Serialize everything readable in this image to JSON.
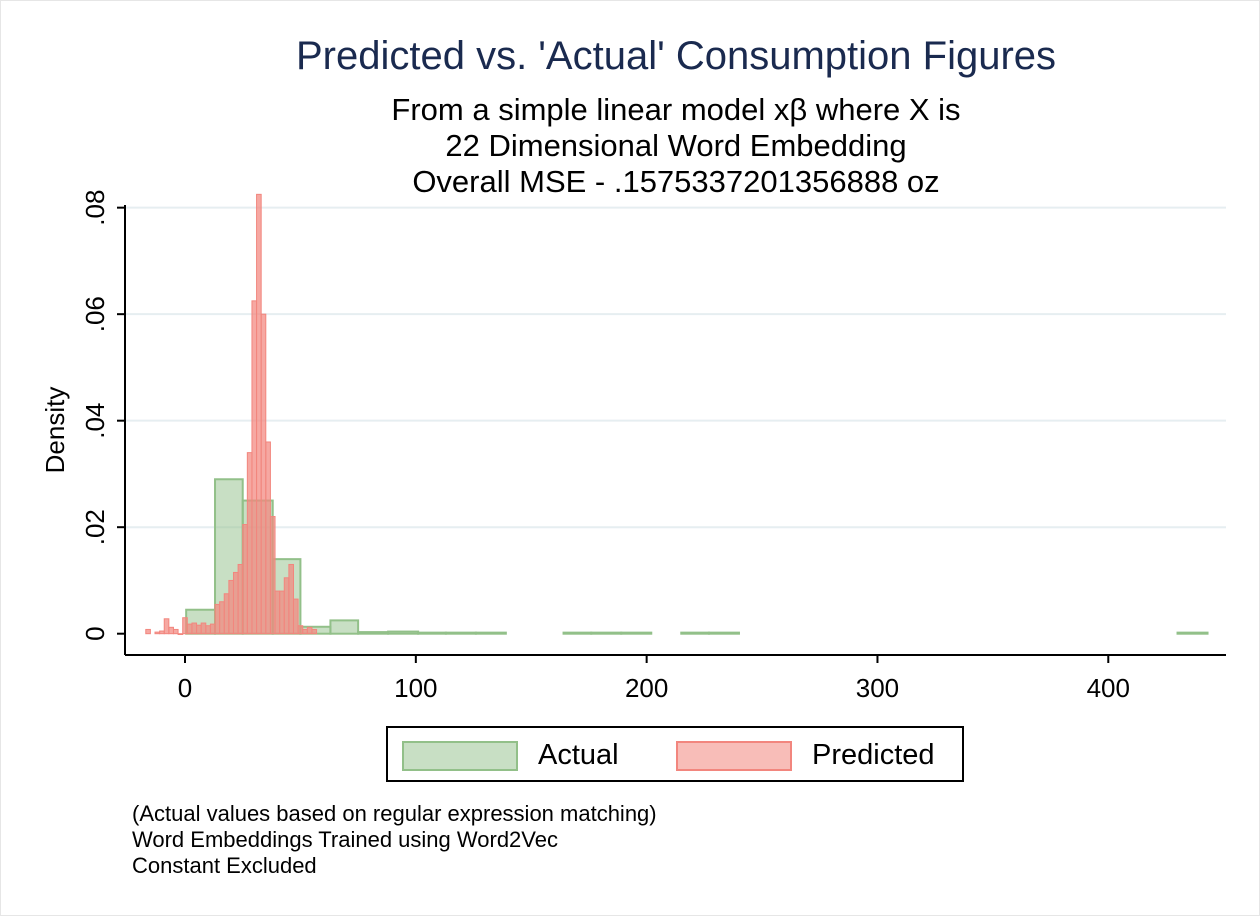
{
  "chart_data": {
    "type": "bar",
    "title": "Predicted vs. 'Actual' Consumption Figures",
    "subtitle": [
      "From a simple linear model xβ where X is",
      "22 Dimensional Word Embedding",
      "Overall MSE - .1575337201356888 oz"
    ],
    "xlabel": "",
    "ylabel": "Density",
    "xlim": [
      -26,
      451
    ],
    "ylim": [
      -0.004,
      0.0805
    ],
    "xticks": [
      0,
      100,
      200,
      300,
      400
    ],
    "xtick_labels": [
      "0",
      "100",
      "200",
      "300",
      "400"
    ],
    "yticks": [
      0,
      0.02,
      0.04,
      0.06,
      0.08
    ],
    "ytick_labels": [
      "0",
      ".02",
      ".04",
      ".06",
      ".08"
    ],
    "grid": true,
    "legend_position": "bottom",
    "series": [
      {
        "name": "Actual",
        "color": "#92c089",
        "bins": [
          {
            "x0": 0.5,
            "x1": 13,
            "y": 0.0045
          },
          {
            "x0": 13,
            "x1": 25,
            "y": 0.029
          },
          {
            "x0": 25,
            "x1": 38,
            "y": 0.025
          },
          {
            "x0": 38,
            "x1": 50,
            "y": 0.014
          },
          {
            "x0": 50,
            "x1": 63,
            "y": 0.0013
          },
          {
            "x0": 63,
            "x1": 75,
            "y": 0.0025
          },
          {
            "x0": 75,
            "x1": 88,
            "y": 0.0003
          },
          {
            "x0": 88,
            "x1": 101,
            "y": 0.0004
          },
          {
            "x0": 101,
            "x1": 113,
            "y": 0.0002
          },
          {
            "x0": 113,
            "x1": 126,
            "y": 0.0002
          },
          {
            "x0": 126,
            "x1": 139,
            "y": 0.0002
          },
          {
            "x0": 164,
            "x1": 176,
            "y": 0.0002
          },
          {
            "x0": 176,
            "x1": 189,
            "y": 0.0002
          },
          {
            "x0": 189,
            "x1": 202,
            "y": 0.0002
          },
          {
            "x0": 215,
            "x1": 227,
            "y": 0.0002
          },
          {
            "x0": 227,
            "x1": 240,
            "y": 0.0002
          },
          {
            "x0": 430,
            "x1": 443,
            "y": 0.0002
          }
        ]
      },
      {
        "name": "Predicted",
        "color": "#f2867e",
        "bins": [
          {
            "x0": -17,
            "x1": -15,
            "y": 0.0008
          },
          {
            "x0": -13,
            "x1": -11,
            "y": 0.0003
          },
          {
            "x0": -11,
            "x1": -9,
            "y": 0.0005
          },
          {
            "x0": -9,
            "x1": -7,
            "y": 0.0028
          },
          {
            "x0": -7,
            "x1": -5,
            "y": 0.0012
          },
          {
            "x0": -5,
            "x1": -3,
            "y": 0.0008
          },
          {
            "x0": -3,
            "x1": -1,
            "y": 0.0
          },
          {
            "x0": -1,
            "x1": 1,
            "y": 0.003
          },
          {
            "x0": 1,
            "x1": 3,
            "y": 0.0018
          },
          {
            "x0": 3,
            "x1": 5,
            "y": 0.002
          },
          {
            "x0": 5,
            "x1": 7,
            "y": 0.0016
          },
          {
            "x0": 7,
            "x1": 9,
            "y": 0.002
          },
          {
            "x0": 9,
            "x1": 11,
            "y": 0.0015
          },
          {
            "x0": 11,
            "x1": 13,
            "y": 0.0018
          },
          {
            "x0": 13,
            "x1": 15,
            "y": 0.0055
          },
          {
            "x0": 15,
            "x1": 17,
            "y": 0.006
          },
          {
            "x0": 17,
            "x1": 19,
            "y": 0.0075
          },
          {
            "x0": 19,
            "x1": 21,
            "y": 0.01
          },
          {
            "x0": 21,
            "x1": 23,
            "y": 0.0115
          },
          {
            "x0": 23,
            "x1": 25,
            "y": 0.013
          },
          {
            "x0": 25,
            "x1": 27,
            "y": 0.0205
          },
          {
            "x0": 27,
            "x1": 29,
            "y": 0.034
          },
          {
            "x0": 29,
            "x1": 31,
            "y": 0.0625
          },
          {
            "x0": 31,
            "x1": 33,
            "y": 0.0825
          },
          {
            "x0": 33,
            "x1": 35,
            "y": 0.06
          },
          {
            "x0": 35,
            "x1": 37,
            "y": 0.036
          },
          {
            "x0": 37,
            "x1": 39,
            "y": 0.022
          },
          {
            "x0": 39,
            "x1": 41,
            "y": 0.008
          },
          {
            "x0": 41,
            "x1": 43,
            "y": 0.008
          },
          {
            "x0": 43,
            "x1": 45,
            "y": 0.0105
          },
          {
            "x0": 45,
            "x1": 47,
            "y": 0.013
          },
          {
            "x0": 47,
            "x1": 49,
            "y": 0.0065
          },
          {
            "x0": 49,
            "x1": 51,
            "y": 0.0015
          },
          {
            "x0": 51,
            "x1": 53,
            "y": 0.0008
          },
          {
            "x0": 53,
            "x1": 55,
            "y": 0.0012
          },
          {
            "x0": 55,
            "x1": 57,
            "y": 0.0008
          }
        ]
      }
    ]
  },
  "notes": [
    "(Actual values based on regular expression matching)",
    "Word Embeddings Trained using Word2Vec",
    "Constant Excluded"
  ],
  "legend": {
    "actual_label": "Actual",
    "predicted_label": "Predicted"
  }
}
